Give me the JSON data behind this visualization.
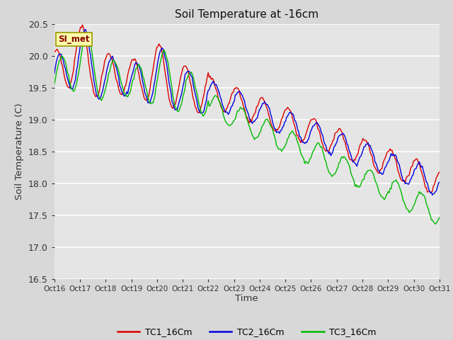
{
  "title": "Soil Temperature at -16cm",
  "xlabel": "Time",
  "ylabel": "Soil Temperature (C)",
  "ylim": [
    16.5,
    20.5
  ],
  "bg_color": "#e5e5e5",
  "grid_color": "#ffffff",
  "line_colors": [
    "#dd0000",
    "#0000dd",
    "#00bb00"
  ],
  "legend_labels": [
    "TC1_16Cm",
    "TC2_16Cm",
    "TC3_16Cm"
  ],
  "annotation_text": "SI_met",
  "x_tick_labels": [
    "Oct 16",
    "Oct 17",
    "Oct 18",
    "Oct 19",
    "Oct 20",
    "Oct 21",
    "Oct 22",
    "Oct 23",
    "Oct 24",
    "Oct 25",
    "Oct 26",
    "Oct 27",
    "Oct 28",
    "Oct 29",
    "Oct 30",
    "Oct 31"
  ],
  "n_points": 384
}
